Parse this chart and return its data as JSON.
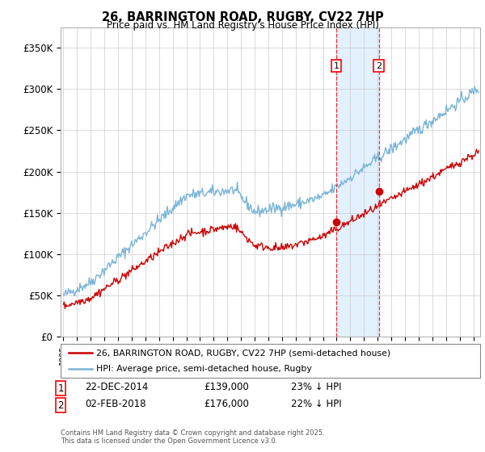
{
  "title": "26, BARRINGTON ROAD, RUGBY, CV22 7HP",
  "subtitle": "Price paid vs. HM Land Registry's House Price Index (HPI)",
  "ylabel_ticks": [
    "£0",
    "£50K",
    "£100K",
    "£150K",
    "£200K",
    "£250K",
    "£300K",
    "£350K"
  ],
  "ytick_values": [
    0,
    50000,
    100000,
    150000,
    200000,
    250000,
    300000,
    350000
  ],
  "ylim": [
    0,
    375000
  ],
  "xlim_start": 1994.8,
  "xlim_end": 2025.5,
  "hpi_color": "#7ab4d8",
  "price_color": "#cc0000",
  "transaction1_date": 2014.97,
  "transaction1_price": 139000,
  "transaction1_label": "1",
  "transaction2_date": 2018.08,
  "transaction2_price": 176000,
  "transaction2_label": "2",
  "legend_line1": "26, BARRINGTON ROAD, RUGBY, CV22 7HP (semi-detached house)",
  "legend_line2": "HPI: Average price, semi-detached house, Rugby",
  "copyright": "Contains HM Land Registry data © Crown copyright and database right 2025.\nThis data is licensed under the Open Government Licence v3.0.",
  "background_color": "#ffffff",
  "grid_color": "#cccccc",
  "shade_color": "#ddeeff"
}
